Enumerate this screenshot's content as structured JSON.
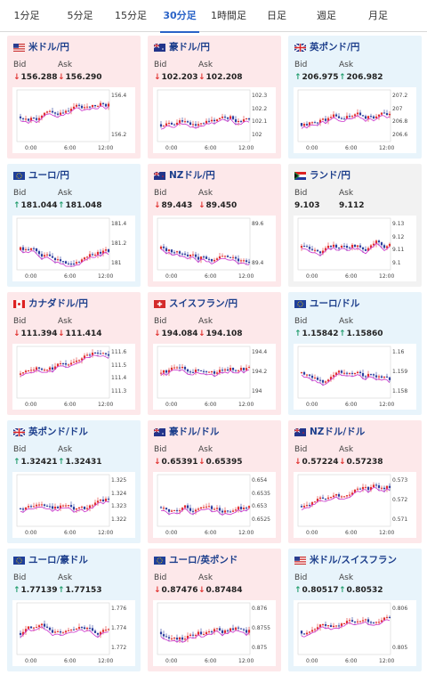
{
  "tabs": [
    {
      "label": "1分足",
      "active": false
    },
    {
      "label": "5分足",
      "active": false
    },
    {
      "label": "15分足",
      "active": false
    },
    {
      "label": "30分足",
      "active": true
    },
    {
      "label": "1時間足",
      "active": false
    },
    {
      "label": "日足",
      "active": false
    },
    {
      "label": "週足",
      "active": false
    },
    {
      "label": "月足",
      "active": false
    }
  ],
  "labels": {
    "bid": "Bid",
    "ask": "Ask"
  },
  "colors": {
    "up": "#1f9c6b",
    "down": "#e0312f",
    "bull": "#e0312f",
    "bear": "#2c3e9e",
    "ma": "#cc33cc",
    "title": "#1d3f8c"
  },
  "pairs": [
    {
      "name": "米ドル/円",
      "flag": "us-flag-icon",
      "bg": "pink",
      "bid": "156.288",
      "ask": "156.290",
      "bid_dir": "down",
      "ask_dir": "down",
      "yticks": [
        "156.4",
        "156.2"
      ],
      "xticks": [
        "0:00",
        "6:00",
        "12:00"
      ]
    },
    {
      "name": "豪ドル/円",
      "flag": "au-flag-icon",
      "bg": "pink",
      "bid": "102.203",
      "ask": "102.208",
      "bid_dir": "down",
      "ask_dir": "down",
      "yticks": [
        "102.3",
        "102.2",
        "102.1",
        "102"
      ],
      "xticks": [
        "0:00",
        "6:00",
        "12:00"
      ]
    },
    {
      "name": "英ポンド/円",
      "flag": "gb-flag-icon",
      "bg": "blue",
      "bid": "206.975",
      "ask": "206.982",
      "bid_dir": "up",
      "ask_dir": "up",
      "yticks": [
        "207.2",
        "207",
        "206.8",
        "206.6"
      ],
      "xticks": [
        "0:00",
        "6:00",
        "12:00"
      ]
    },
    {
      "name": "ユーロ/円",
      "flag": "eu-flag-icon",
      "bg": "blue",
      "bid": "181.044",
      "ask": "181.048",
      "bid_dir": "up",
      "ask_dir": "up",
      "yticks": [
        "181.4",
        "181.2",
        "181"
      ],
      "xticks": [
        "0:00",
        "6:00",
        "12:00"
      ]
    },
    {
      "name": "NZドル/円",
      "flag": "nz-flag-icon",
      "bg": "pink",
      "bid": "89.443",
      "ask": "89.450",
      "bid_dir": "down",
      "ask_dir": "down",
      "yticks": [
        "89.6",
        "89.4"
      ],
      "xticks": [
        "0:00",
        "6:00",
        "12:00"
      ]
    },
    {
      "name": "ランド/円",
      "flag": "za-flag-icon",
      "bg": "gray",
      "bid": "9.103",
      "ask": "9.112",
      "bid_dir": "none",
      "ask_dir": "none",
      "yticks": [
        "9.13",
        "9.12",
        "9.11",
        "9.1"
      ],
      "xticks": [
        "0:00",
        "6:00",
        "12:00"
      ]
    },
    {
      "name": "カナダドル/円",
      "flag": "ca-flag-icon",
      "bg": "pink",
      "bid": "111.394",
      "ask": "111.414",
      "bid_dir": "down",
      "ask_dir": "down",
      "yticks": [
        "111.6",
        "111.5",
        "111.4",
        "111.3"
      ],
      "xticks": [
        "0:00",
        "6:00",
        "12:00"
      ]
    },
    {
      "name": "スイスフラン/円",
      "flag": "ch-flag-icon",
      "bg": "pink",
      "bid": "194.084",
      "ask": "194.108",
      "bid_dir": "down",
      "ask_dir": "down",
      "yticks": [
        "194.4",
        "194.2",
        "194"
      ],
      "xticks": [
        "0:00",
        "6:00",
        "12:00"
      ]
    },
    {
      "name": "ユーロ/ドル",
      "flag": "eu-flag-icon",
      "bg": "blue",
      "bid": "1.15842",
      "ask": "1.15860",
      "bid_dir": "up",
      "ask_dir": "up",
      "yticks": [
        "1.16",
        "1.159",
        "1.158"
      ],
      "xticks": [
        "0:00",
        "6:00",
        "12:00"
      ]
    },
    {
      "name": "英ポンド/ドル",
      "flag": "gb-flag-icon",
      "bg": "blue",
      "bid": "1.32421",
      "ask": "1.32431",
      "bid_dir": "up",
      "ask_dir": "up",
      "yticks": [
        "1.325",
        "1.324",
        "1.323",
        "1.322"
      ],
      "xticks": [
        "0:00",
        "6:00",
        "12:00"
      ]
    },
    {
      "name": "豪ドル/ドル",
      "flag": "au-flag-icon",
      "bg": "pink",
      "bid": "0.65391",
      "ask": "0.65395",
      "bid_dir": "down",
      "ask_dir": "down",
      "yticks": [
        "0.654",
        "0.6535",
        "0.653",
        "0.6525"
      ],
      "xticks": [
        "0:00",
        "6:00",
        "12:00"
      ]
    },
    {
      "name": "NZドル/ドル",
      "flag": "nz-flag-icon",
      "bg": "pink",
      "bid": "0.57224",
      "ask": "0.57238",
      "bid_dir": "down",
      "ask_dir": "down",
      "yticks": [
        "0.573",
        "0.572",
        "0.571"
      ],
      "xticks": [
        "0:00",
        "6:00",
        "12:00"
      ]
    },
    {
      "name": "ユーロ/豪ドル",
      "flag": "eu-flag-icon",
      "bg": "blue",
      "bid": "1.77139",
      "ask": "1.77153",
      "bid_dir": "up",
      "ask_dir": "up",
      "yticks": [
        "1.776",
        "1.774",
        "1.772"
      ],
      "xticks": [
        "0:00",
        "6:00",
        "12:00"
      ]
    },
    {
      "name": "ユーロ/英ポンド",
      "flag": "eu-flag-icon",
      "bg": "pink",
      "bid": "0.87476",
      "ask": "0.87484",
      "bid_dir": "down",
      "ask_dir": "down",
      "yticks": [
        "0.876",
        "0.8755",
        "0.875"
      ],
      "xticks": [
        "0:00",
        "6:00",
        "12:00"
      ]
    },
    {
      "name": "米ドル/スイスフラン",
      "flag": "us-flag-icon",
      "bg": "blue",
      "bid": "0.80517",
      "ask": "0.80532",
      "bid_dir": "up",
      "ask_dir": "up",
      "yticks": [
        "0.806",
        "0.805"
      ],
      "xticks": [
        "0:00",
        "6:00",
        "12:00"
      ]
    }
  ]
}
